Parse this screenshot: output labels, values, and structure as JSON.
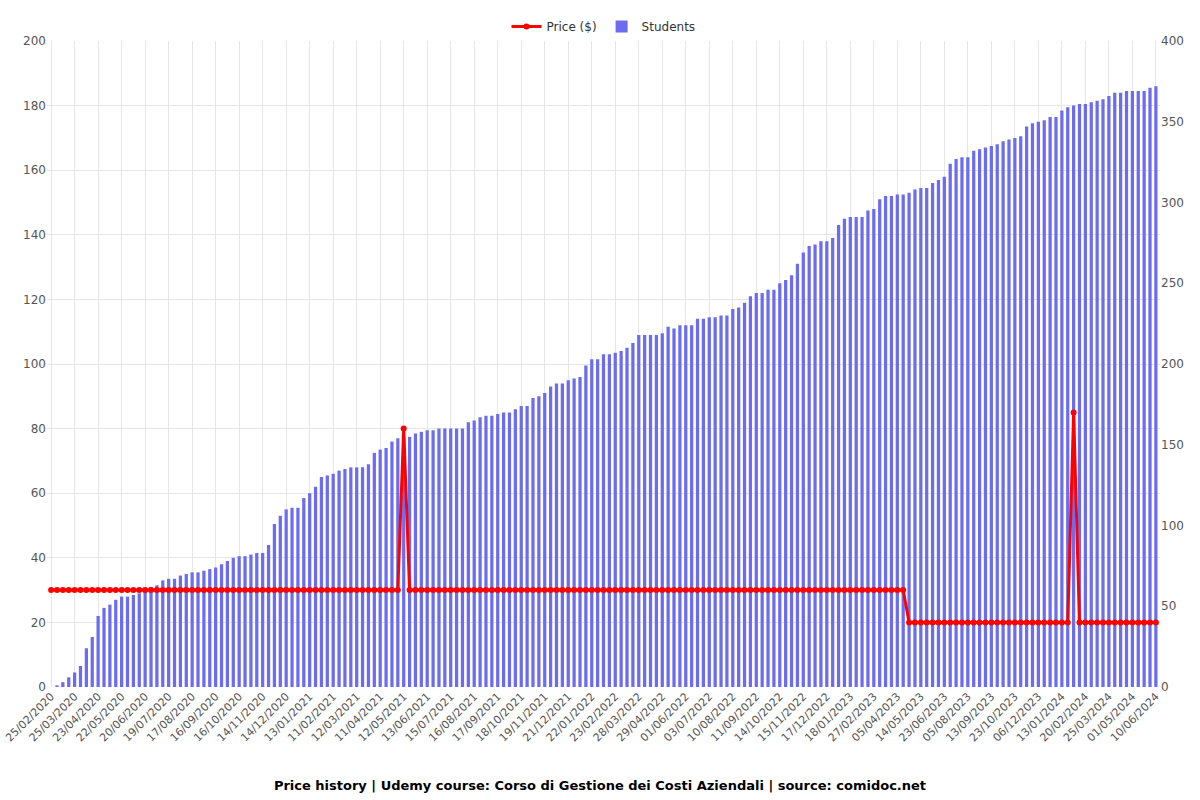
{
  "chart_data": {
    "type": "bar",
    "title": "Price history | Udemy course: Corso di Gestione dei Costi Aziendali | source: comidoc.net",
    "categories": [
      "25/02/2020",
      null,
      null,
      null,
      "25/03/2020",
      null,
      null,
      null,
      "23/04/2020",
      null,
      null,
      null,
      "22/05/2020",
      null,
      null,
      null,
      "20/06/2020",
      null,
      null,
      null,
      "19/07/2020",
      null,
      null,
      null,
      "17/08/2020",
      null,
      null,
      null,
      "16/09/2020",
      null,
      null,
      null,
      "16/10/2020",
      null,
      null,
      null,
      "14/11/2020",
      null,
      null,
      null,
      "14/12/2020",
      null,
      null,
      null,
      "13/01/2021",
      null,
      null,
      null,
      "11/02/2021",
      null,
      null,
      null,
      "12/03/2021",
      null,
      null,
      null,
      "11/04/2021",
      null,
      null,
      null,
      "12/05/2021",
      null,
      null,
      null,
      "13/06/2021",
      null,
      null,
      null,
      "15/07/2021",
      null,
      null,
      null,
      "16/08/2021",
      null,
      null,
      null,
      "17/09/2021",
      null,
      null,
      null,
      "18/10/2021",
      null,
      null,
      null,
      "19/11/2021",
      null,
      null,
      null,
      "21/12/2021",
      null,
      null,
      null,
      "22/01/2022",
      null,
      null,
      null,
      "23/02/2022",
      null,
      null,
      null,
      "28/03/2022",
      null,
      null,
      null,
      "29/04/2022",
      null,
      null,
      null,
      "01/06/2022",
      null,
      null,
      null,
      "03/07/2022",
      null,
      null,
      null,
      "10/08/2022",
      null,
      null,
      null,
      "11/09/2022",
      null,
      null,
      null,
      "14/10/2022",
      null,
      null,
      null,
      "15/11/2022",
      null,
      null,
      null,
      "17/12/2022",
      null,
      null,
      null,
      "18/01/2023",
      null,
      null,
      null,
      "27/02/2023",
      null,
      null,
      null,
      "05/04/2023",
      null,
      null,
      null,
      "14/05/2023",
      null,
      null,
      null,
      "23/06/2023",
      null,
      null,
      null,
      "05/08/2023",
      null,
      null,
      null,
      "13/09/2023",
      null,
      null,
      null,
      "23/10/2023",
      null,
      null,
      null,
      "06/12/2023",
      null,
      null,
      null,
      "13/01/2024",
      null,
      null,
      null,
      "20/02/2024",
      null,
      null,
      null,
      "25/03/2024",
      null,
      null,
      null,
      "01/05/2024",
      null,
      null,
      null,
      "10/06/2024"
    ],
    "series": [
      {
        "name": "Price ($)",
        "type": "line",
        "color": "#ff0000",
        "marker": "circle",
        "values": [
          30,
          30,
          30,
          30,
          30,
          30,
          30,
          30,
          30,
          30,
          30,
          30,
          30,
          30,
          30,
          30,
          30,
          30,
          30,
          30,
          30,
          30,
          30,
          30,
          30,
          30,
          30,
          30,
          30,
          30,
          30,
          30,
          30,
          30,
          30,
          30,
          30,
          30,
          30,
          30,
          30,
          30,
          30,
          30,
          30,
          30,
          30,
          30,
          30,
          30,
          30,
          30,
          30,
          30,
          30,
          30,
          30,
          30,
          30,
          30,
          80,
          30,
          30,
          30,
          30,
          30,
          30,
          30,
          30,
          30,
          30,
          30,
          30,
          30,
          30,
          30,
          30,
          30,
          30,
          30,
          30,
          30,
          30,
          30,
          30,
          30,
          30,
          30,
          30,
          30,
          30,
          30,
          30,
          30,
          30,
          30,
          30,
          30,
          30,
          30,
          30,
          30,
          30,
          30,
          30,
          30,
          30,
          30,
          30,
          30,
          30,
          30,
          30,
          30,
          30,
          30,
          30,
          30,
          30,
          30,
          30,
          30,
          30,
          30,
          30,
          30,
          30,
          30,
          30,
          30,
          30,
          30,
          30,
          30,
          30,
          30,
          30,
          30,
          30,
          30,
          30,
          30,
          30,
          30,
          30,
          30,
          20,
          20,
          20,
          20,
          20,
          20,
          20,
          20,
          20,
          20,
          20,
          20,
          20,
          20,
          20,
          20,
          20,
          20,
          20,
          20,
          20,
          20,
          20,
          20,
          20,
          20,
          20,
          20,
          85,
          20,
          20,
          20,
          20,
          20,
          20,
          20,
          20,
          20,
          20,
          20,
          20,
          20,
          20
        ]
      },
      {
        "name": "Students",
        "type": "bar",
        "color": "#6b6cf0",
        "axis": "y2",
        "values": [
          0,
          1,
          3,
          6,
          9,
          13,
          24,
          31,
          44,
          49,
          51,
          54,
          56,
          56,
          57,
          58,
          60,
          62,
          63,
          66,
          67,
          67,
          69,
          70,
          71,
          71,
          72,
          73,
          74,
          76,
          78,
          80,
          81,
          81,
          82,
          83,
          83,
          88,
          101,
          106,
          110,
          111,
          111,
          117,
          120,
          124,
          130,
          131,
          132,
          134,
          135,
          136,
          136,
          136,
          138,
          145,
          147,
          148,
          152,
          154,
          154,
          155,
          157,
          158,
          159,
          159,
          160,
          160,
          160,
          160,
          160,
          164,
          165,
          167,
          168,
          168,
          169,
          170,
          170,
          172,
          174,
          174,
          179,
          180,
          182,
          186,
          188,
          188,
          190,
          191,
          192,
          199,
          203,
          203,
          206,
          206,
          207,
          208,
          210,
          213,
          218,
          218,
          218,
          218,
          219,
          223,
          222,
          224,
          224,
          224,
          228,
          228,
          229,
          229,
          230,
          230,
          234,
          235,
          238,
          242,
          244,
          244,
          246,
          246,
          250,
          252,
          255,
          262,
          269,
          273,
          274,
          276,
          276,
          278,
          286,
          290,
          291,
          291,
          291,
          295,
          296,
          302,
          304,
          304,
          305,
          305,
          306,
          308,
          309,
          309,
          312,
          314,
          316,
          324,
          327,
          328,
          328,
          332,
          333,
          334,
          335,
          336,
          338,
          339,
          340,
          341,
          347,
          349,
          350,
          351,
          353,
          353,
          357,
          359,
          360,
          361,
          361,
          362,
          363,
          364,
          366,
          368,
          368,
          369,
          369,
          369,
          369,
          371,
          372
        ]
      }
    ],
    "ylim": [
      0,
      200
    ],
    "yticks": [
      0,
      20,
      40,
      60,
      80,
      100,
      120,
      140,
      160,
      180,
      200
    ],
    "y2lim": [
      0,
      400
    ],
    "y2ticks": [
      0,
      50,
      100,
      150,
      200,
      250,
      300,
      350,
      400
    ],
    "grid": true,
    "legend": "top"
  }
}
